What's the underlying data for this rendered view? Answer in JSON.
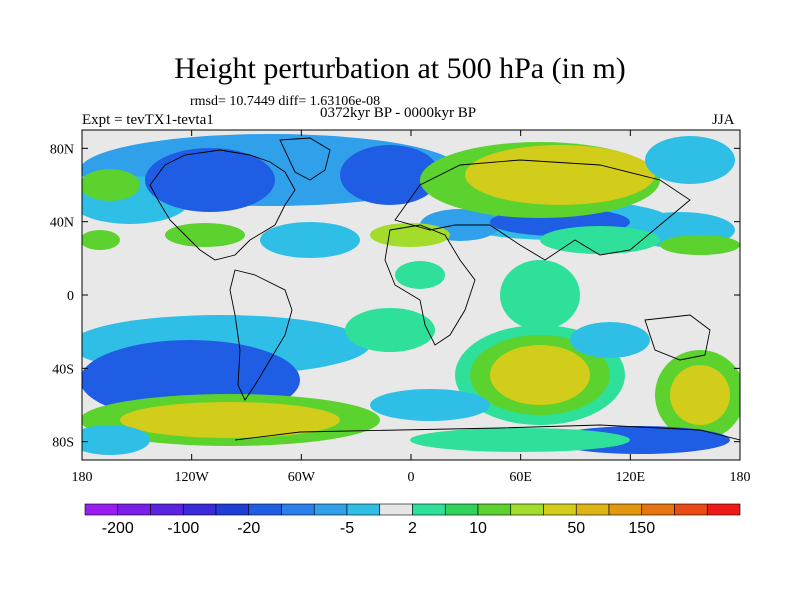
{
  "header": {
    "title": "Height perturbation at 500 hPa (in m)",
    "stats": "rmsd= 10.7449 diff= 1.63106e-08",
    "left_label": "Expt = tevTX1-tevta1",
    "center_label": "0372kyr BP - 0000kyr BP",
    "right_label": "JJA"
  },
  "map": {
    "projection": "cylindrical equidistant",
    "lon_range": [
      -180,
      180
    ],
    "lat_range": [
      -90,
      90
    ],
    "lon_ticks": [
      {
        "value": -180,
        "label": "180"
      },
      {
        "value": -120,
        "label": "120W"
      },
      {
        "value": -60,
        "label": "60W"
      },
      {
        "value": 0,
        "label": "0"
      },
      {
        "value": 60,
        "label": "60E"
      },
      {
        "value": 120,
        "label": "120E"
      },
      {
        "value": 180,
        "label": "180"
      }
    ],
    "lat_ticks": [
      {
        "value": 80,
        "label": "80N"
      },
      {
        "value": 40,
        "label": "40N"
      },
      {
        "value": 0,
        "label": "0"
      },
      {
        "value": -40,
        "label": "40S"
      },
      {
        "value": -80,
        "label": "80S"
      }
    ],
    "neutral_color": "#e8e8e8",
    "coastline_color": "#000000"
  },
  "colorbar": {
    "colors": [
      "#9a1cf0",
      "#7a1ee8",
      "#5b22e0",
      "#3a2ad8",
      "#1f3ed8",
      "#1f5ee4",
      "#2a80ea",
      "#30a0ea",
      "#2fbfe6",
      "#e6e6e6",
      "#2ee09a",
      "#31d25a",
      "#5bd22e",
      "#a4dc2c",
      "#d2cc1a",
      "#ddb414",
      "#e1980e",
      "#e67410",
      "#ea4a14",
      "#ee1a1a"
    ],
    "labels": [
      {
        "boundary": 1,
        "text": "-200"
      },
      {
        "boundary": 3,
        "text": "-100"
      },
      {
        "boundary": 5,
        "text": "-20"
      },
      {
        "boundary": 8,
        "text": "-5"
      },
      {
        "boundary": 10,
        "text": "2"
      },
      {
        "boundary": 12,
        "text": "10"
      },
      {
        "boundary": 15,
        "text": "50"
      },
      {
        "boundary": 17,
        "text": "150"
      }
    ]
  }
}
